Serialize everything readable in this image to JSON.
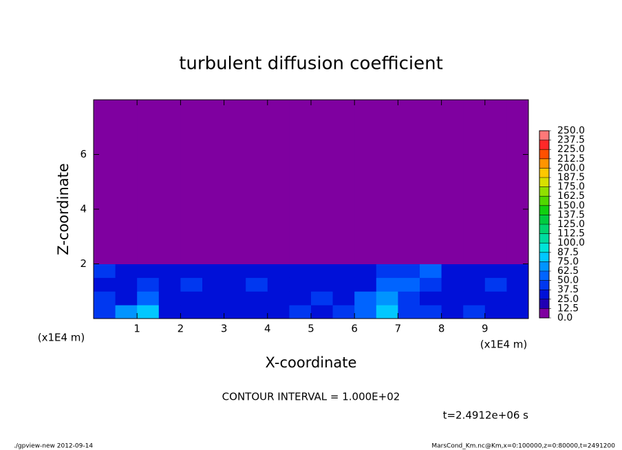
{
  "chart_data": {
    "type": "heatmap",
    "title": "turbulent diffusion coefficient",
    "x_label": "X-coordinate",
    "y_label": "Z-coordinate",
    "x_unit": "(x1E4 m)",
    "y_unit": "(x1E4 m)",
    "contour_note": "CONTOUR INTERVAL = 1.000E+02",
    "time_note": "t=2.4912e+06 s",
    "footer_left": "./gpview-new  2012-09-14",
    "footer_right": "MarsCond_Km.nc@Km,x=0:100000,z=0:80000,t=2491200",
    "xlim": [
      0,
      10
    ],
    "ylim": [
      0,
      8
    ],
    "xticks": [
      1,
      2,
      3,
      4,
      5,
      6,
      7,
      8,
      9
    ],
    "yticks": [
      2,
      4,
      6
    ],
    "x_bins": [
      0,
      0.5,
      1,
      1.5,
      2,
      2.5,
      3,
      3.5,
      4,
      4.5,
      5,
      5.5,
      6,
      6.5,
      7,
      7.5,
      8,
      8.5,
      9,
      9.5,
      10
    ],
    "y_bins": [
      0,
      0.5,
      1,
      1.5,
      2,
      8
    ],
    "z": [
      [
        45,
        70,
        80,
        30,
        30,
        25,
        30,
        35,
        35,
        40,
        35,
        40,
        60,
        80,
        45,
        40,
        35,
        40,
        35,
        30
      ],
      [
        40,
        35,
        60,
        30,
        30,
        35,
        30,
        30,
        30,
        35,
        40,
        35,
        50,
        70,
        45,
        35,
        35,
        30,
        35,
        30
      ],
      [
        35,
        30,
        40,
        35,
        45,
        30,
        35,
        40,
        35,
        30,
        35,
        35,
        30,
        60,
        55,
        40,
        35,
        35,
        40,
        30
      ],
      [
        40,
        35,
        35,
        30,
        30,
        35,
        35,
        30,
        30,
        30,
        30,
        30,
        35,
        40,
        45,
        50,
        35,
        35,
        30,
        35
      ],
      [
        0,
        0,
        0,
        0,
        0,
        0,
        0,
        0,
        0,
        0,
        0,
        0,
        0,
        0,
        0,
        0,
        0,
        0,
        0,
        0
      ]
    ],
    "levels": [
      {
        "value": 0,
        "label": "0.0"
      },
      {
        "value": 12.5,
        "label": "12.5"
      },
      {
        "value": 25,
        "label": "25.0"
      },
      {
        "value": 37.5,
        "label": "37.5"
      },
      {
        "value": 50,
        "label": "50.0"
      },
      {
        "value": 62.5,
        "label": "62.5"
      },
      {
        "value": 75,
        "label": "75.0"
      },
      {
        "value": 87.5,
        "label": "87.5"
      },
      {
        "value": 100,
        "label": "100.0"
      },
      {
        "value": 112.5,
        "label": "112.5"
      },
      {
        "value": 125,
        "label": "125.0"
      },
      {
        "value": 137.5,
        "label": "137.5"
      },
      {
        "value": 150,
        "label": "150.0"
      },
      {
        "value": 162.5,
        "label": "162.5"
      },
      {
        "value": 175,
        "label": "175.0"
      },
      {
        "value": 187.5,
        "label": "187.5"
      },
      {
        "value": 200,
        "label": "200.0"
      },
      {
        "value": 212.5,
        "label": "212.5"
      },
      {
        "value": 225,
        "label": "225.0"
      },
      {
        "value": 237.5,
        "label": "237.5"
      },
      {
        "value": 250,
        "label": "250.0"
      }
    ],
    "level_colors": [
      "#7f00a0",
      "#2000b4",
      "#0010d8",
      "#0038f0",
      "#0064ff",
      "#0094ff",
      "#00c8ff",
      "#00e4d8",
      "#00dca0",
      "#00d470",
      "#00cc40",
      "#10d010",
      "#50d800",
      "#90e000",
      "#d8e000",
      "#ffc800",
      "#ff9400",
      "#ff5000",
      "#ff2828",
      "#ff7878"
    ]
  }
}
